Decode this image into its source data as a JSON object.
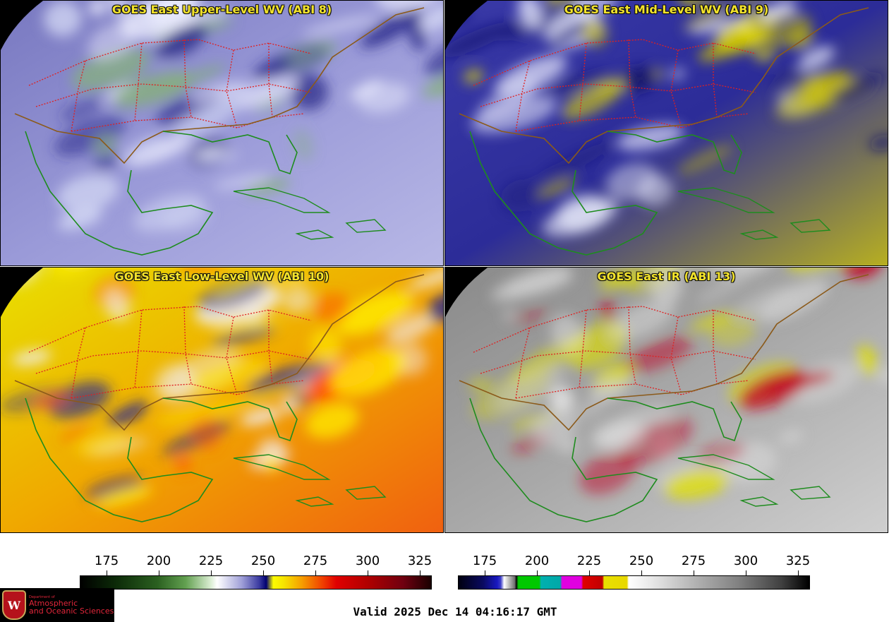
{
  "panels": [
    {
      "title": "GOES East Upper-Level WV (ABI 8)",
      "style": "upper"
    },
    {
      "title": "GOES East Mid-Level WV (ABI 9)",
      "style": "mid"
    },
    {
      "title": "GOES East Low-Level WV (ABI 10)",
      "style": "low"
    },
    {
      "title": "GOES East IR (ABI 13)",
      "style": "ir"
    }
  ],
  "colorbars": {
    "wv": {
      "ticks": [
        "175",
        "200",
        "225",
        "250",
        "275",
        "300",
        "325"
      ]
    },
    "ir": {
      "ticks": [
        "175",
        "200",
        "225",
        "250",
        "275",
        "300",
        "325"
      ]
    }
  },
  "logo": {
    "dept": "Department of",
    "line1": "Atmospheric",
    "line2": "and Oceanic Sciences",
    "crest_letter": "W"
  },
  "valid_time": "Valid 2025 Dec 14 04:16:17 GMT",
  "colors": {
    "title": "#f3e32b",
    "coast": "#1e8c1e",
    "border": "#8b5a1a",
    "state": "#e02020"
  }
}
